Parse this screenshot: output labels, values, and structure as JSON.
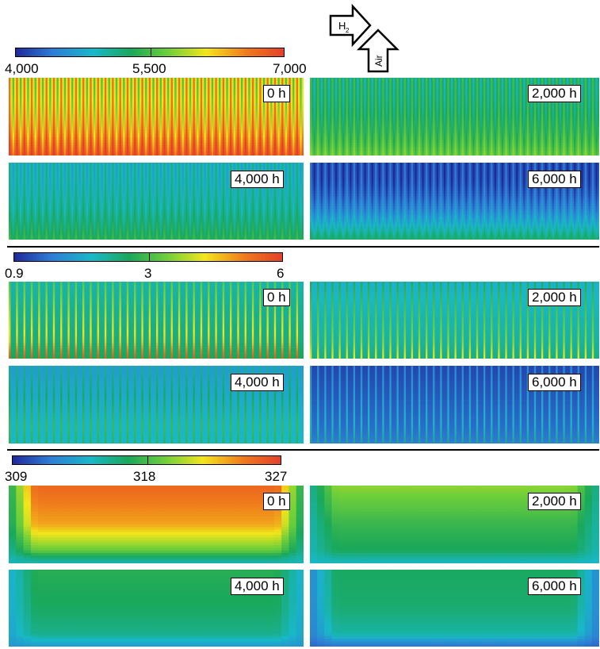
{
  "legend": {
    "h2_label": "H",
    "h2_sub": "2",
    "air_label": "Air"
  },
  "colormap": [
    "#1f2a9a",
    "#2e7dd6",
    "#19b8c8",
    "#1aa85a",
    "#6fcf3a",
    "#f2e61b",
    "#f07a1c",
    "#e5402a"
  ],
  "rows": [
    {
      "name": "current-density",
      "colorbar": {
        "min_label": "4,000",
        "mid_label": "5,500",
        "max_label": "7,000"
      },
      "panels": [
        {
          "time_label": "0 h",
          "pattern": "stripes",
          "channels": 40,
          "base": 0.62,
          "bottom": 0.95,
          "top_bias": 0.7,
          "amp": 0.18
        },
        {
          "time_label": "2,000 h",
          "pattern": "stripes",
          "channels": 40,
          "base": 0.42,
          "bottom": 0.55,
          "top_bias": 0.4,
          "amp": 0.1
        },
        {
          "time_label": "4,000 h",
          "pattern": "stripes",
          "channels": 40,
          "base": 0.33,
          "bottom": 0.45,
          "top_bias": 0.3,
          "amp": 0.08
        },
        {
          "time_label": "6,000 h",
          "pattern": "stripes",
          "channels": 40,
          "base": 0.1,
          "bottom": 0.4,
          "top_bias": 0.06,
          "amp": 0.08
        }
      ]
    },
    {
      "name": "water-content",
      "colorbar": {
        "min_label": "0.9",
        "mid_label": "3",
        "max_label": "6"
      },
      "panels": [
        {
          "time_label": "0 h",
          "pattern": "needles",
          "channels": 40,
          "base": 0.45,
          "bottom": 0.55,
          "top_bias": 0.45,
          "amp": 0.35
        },
        {
          "time_label": "2,000 h",
          "pattern": "needles",
          "channels": 40,
          "base": 0.4,
          "bottom": 0.45,
          "top_bias": 0.4,
          "amp": 0.25
        },
        {
          "time_label": "4,000 h",
          "pattern": "needles",
          "channels": 40,
          "base": 0.35,
          "bottom": 0.3,
          "top_bias": 0.35,
          "amp": 0.18
        },
        {
          "time_label": "6,000 h",
          "pattern": "needles",
          "channels": 40,
          "base": 0.18,
          "bottom": 0.22,
          "top_bias": 0.18,
          "amp": 0.15
        }
      ]
    },
    {
      "name": "temperature",
      "colorbar": {
        "min_label": "309",
        "mid_label": "318",
        "max_label": "327"
      },
      "panels": [
        {
          "time_label": "0 h",
          "pattern": "gradient",
          "top": 0.9,
          "mid": 0.8,
          "bottom": 0.45,
          "edge": 0.3
        },
        {
          "time_label": "2,000 h",
          "pattern": "gradient",
          "top": 0.6,
          "mid": 0.48,
          "bottom": 0.4,
          "edge": 0.28
        },
        {
          "time_label": "4,000 h",
          "pattern": "gradient",
          "top": 0.45,
          "mid": 0.42,
          "bottom": 0.34,
          "edge": 0.2
        },
        {
          "time_label": "6,000 h",
          "pattern": "gradient",
          "top": 0.42,
          "mid": 0.4,
          "bottom": 0.3,
          "edge": 0.1
        }
      ]
    }
  ]
}
